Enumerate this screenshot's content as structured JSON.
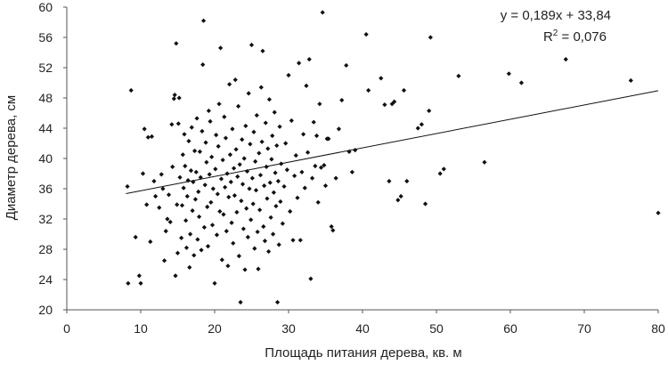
{
  "chart_data": {
    "type": "scatter",
    "xlabel": "Площадь питания дерева,  кв. м",
    "ylabel": "Диаметр дерева,  см",
    "xlim": [
      0,
      80
    ],
    "ylim": [
      20,
      60
    ],
    "xticks": [
      0,
      10,
      20,
      30,
      40,
      50,
      60,
      70,
      80
    ],
    "yticks": [
      20,
      24,
      28,
      32,
      36,
      40,
      44,
      48,
      52,
      56,
      60
    ],
    "grid": false,
    "marker_color": "#111111",
    "trendline": {
      "slope": 0.189,
      "intercept": 33.84,
      "x_range": [
        8,
        80
      ],
      "equation": "y = 0,189x + 33,84",
      "r2_prefix": "R",
      "r2_sup": "2",
      "r2_value": " = 0,076"
    },
    "points": [
      [
        8.2,
        36.3
      ],
      [
        8.3,
        23.5
      ],
      [
        8.7,
        49.0
      ],
      [
        9.3,
        29.6
      ],
      [
        9.8,
        24.5
      ],
      [
        10.0,
        23.5
      ],
      [
        10.3,
        38.0
      ],
      [
        10.5,
        43.9
      ],
      [
        10.8,
        33.9
      ],
      [
        11.0,
        42.8
      ],
      [
        11.3,
        29.0
      ],
      [
        11.5,
        42.9
      ],
      [
        11.8,
        37.0
      ],
      [
        12.0,
        35.0
      ],
      [
        12.5,
        33.5
      ],
      [
        12.8,
        37.9
      ],
      [
        13.0,
        36.0
      ],
      [
        13.2,
        26.5
      ],
      [
        13.4,
        30.4
      ],
      [
        13.6,
        32.0
      ],
      [
        13.8,
        35.2
      ],
      [
        14.0,
        31.6
      ],
      [
        14.2,
        44.5
      ],
      [
        14.3,
        38.9
      ],
      [
        14.5,
        47.9
      ],
      [
        14.6,
        48.4
      ],
      [
        14.7,
        24.5
      ],
      [
        14.8,
        55.2
      ],
      [
        14.9,
        33.9
      ],
      [
        15.0,
        27.5
      ],
      [
        15.1,
        44.6
      ],
      [
        15.2,
        48.0
      ],
      [
        15.3,
        37.5
      ],
      [
        15.5,
        29.5
      ],
      [
        15.6,
        33.8
      ],
      [
        15.7,
        40.5
      ],
      [
        15.8,
        36.1
      ],
      [
        15.9,
        43.2
      ],
      [
        16.0,
        39.0
      ],
      [
        16.1,
        31.8
      ],
      [
        16.2,
        28.2
      ],
      [
        16.3,
        35.0
      ],
      [
        16.4,
        37.1
      ],
      [
        16.5,
        42.3
      ],
      [
        16.6,
        25.6
      ],
      [
        16.7,
        30.0
      ],
      [
        16.8,
        38.4
      ],
      [
        16.9,
        44.1
      ],
      [
        17.0,
        33.1
      ],
      [
        17.1,
        36.9
      ],
      [
        17.2,
        27.2
      ],
      [
        17.3,
        41.0
      ],
      [
        17.4,
        34.6
      ],
      [
        17.5,
        38.2
      ],
      [
        17.6,
        45.3
      ],
      [
        17.7,
        29.3
      ],
      [
        17.8,
        35.6
      ],
      [
        17.9,
        32.3
      ],
      [
        18.0,
        40.9
      ],
      [
        18.1,
        37.5
      ],
      [
        18.2,
        27.9
      ],
      [
        18.3,
        43.6
      ],
      [
        18.4,
        52.4
      ],
      [
        18.5,
        58.2
      ],
      [
        18.6,
        30.9
      ],
      [
        18.7,
        36.5
      ],
      [
        18.8,
        42.1
      ],
      [
        18.9,
        39.5
      ],
      [
        19.0,
        33.6
      ],
      [
        19.1,
        28.4
      ],
      [
        19.2,
        46.3
      ],
      [
        19.3,
        37.9
      ],
      [
        19.4,
        44.9
      ],
      [
        19.5,
        34.2
      ],
      [
        19.6,
        40.2
      ],
      [
        19.7,
        31.2
      ],
      [
        19.8,
        36.0
      ],
      [
        20.0,
        23.5
      ],
      [
        20.1,
        38.6
      ],
      [
        20.2,
        43.1
      ],
      [
        20.3,
        29.9
      ],
      [
        20.4,
        35.3
      ],
      [
        20.5,
        41.6
      ],
      [
        20.6,
        47.2
      ],
      [
        20.7,
        33.0
      ],
      [
        20.8,
        54.6
      ],
      [
        20.9,
        37.3
      ],
      [
        21.0,
        26.6
      ],
      [
        21.1,
        39.8
      ],
      [
        21.2,
        32.6
      ],
      [
        21.3,
        45.5
      ],
      [
        21.4,
        36.2
      ],
      [
        21.5,
        42.7
      ],
      [
        21.6,
        30.4
      ],
      [
        21.7,
        38.0
      ],
      [
        21.8,
        25.8
      ],
      [
        21.9,
        34.9
      ],
      [
        22.0,
        49.8
      ],
      [
        22.1,
        40.5
      ],
      [
        22.2,
        36.9
      ],
      [
        22.3,
        31.5
      ],
      [
        22.4,
        43.9
      ],
      [
        22.5,
        28.8
      ],
      [
        22.6,
        38.7
      ],
      [
        22.7,
        35.1
      ],
      [
        22.8,
        50.4
      ],
      [
        22.9,
        41.2
      ],
      [
        23.0,
        32.9
      ],
      [
        23.1,
        37.6
      ],
      [
        23.2,
        46.9
      ],
      [
        23.3,
        27.1
      ],
      [
        23.4,
        39.2
      ],
      [
        23.5,
        21.0
      ],
      [
        23.6,
        34.4
      ],
      [
        23.7,
        42.5
      ],
      [
        23.8,
        36.6
      ],
      [
        23.9,
        30.7
      ],
      [
        24.0,
        40.0
      ],
      [
        24.1,
        25.3
      ],
      [
        24.2,
        44.3
      ],
      [
        24.3,
        33.4
      ],
      [
        24.4,
        38.3
      ],
      [
        24.5,
        29.6
      ],
      [
        24.6,
        48.6
      ],
      [
        24.7,
        36.0
      ],
      [
        24.8,
        41.9
      ],
      [
        24.9,
        31.9
      ],
      [
        25.0,
        55.0
      ],
      [
        25.1,
        37.4
      ],
      [
        25.2,
        34.0
      ],
      [
        25.3,
        43.5
      ],
      [
        25.4,
        28.1
      ],
      [
        25.5,
        39.6
      ],
      [
        25.6,
        35.8
      ],
      [
        25.7,
        45.7
      ],
      [
        25.8,
        30.3
      ],
      [
        25.9,
        25.4
      ],
      [
        26.0,
        40.7
      ],
      [
        26.1,
        33.2
      ],
      [
        26.2,
        37.8
      ],
      [
        26.3,
        49.4
      ],
      [
        26.4,
        42.2
      ],
      [
        26.5,
        54.2
      ],
      [
        26.6,
        31.0
      ],
      [
        26.7,
        36.4
      ],
      [
        26.8,
        29.1
      ],
      [
        26.9,
        44.7
      ],
      [
        27.0,
        38.9
      ],
      [
        27.1,
        34.7
      ],
      [
        27.2,
        41.3
      ],
      [
        27.3,
        27.7
      ],
      [
        27.4,
        47.8
      ],
      [
        27.5,
        36.8
      ],
      [
        27.6,
        32.2
      ],
      [
        27.7,
        39.9
      ],
      [
        27.8,
        43.0
      ],
      [
        27.9,
        30.0
      ],
      [
        28.0,
        35.5
      ],
      [
        28.1,
        46.1
      ],
      [
        28.2,
        38.1
      ],
      [
        28.3,
        33.7
      ],
      [
        28.4,
        41.7
      ],
      [
        28.5,
        21.0
      ],
      [
        28.6,
        37.0
      ],
      [
        28.7,
        28.6
      ],
      [
        28.8,
        44.2
      ],
      [
        28.9,
        34.3
      ],
      [
        29.0,
        39.3
      ],
      [
        29.2,
        31.4
      ],
      [
        29.4,
        36.3
      ],
      [
        29.6,
        42.0
      ],
      [
        29.8,
        38.5
      ],
      [
        30.0,
        51.0
      ],
      [
        30.2,
        33.0
      ],
      [
        30.4,
        45.0
      ],
      [
        30.6,
        29.2
      ],
      [
        30.8,
        37.7
      ],
      [
        31.0,
        40.4
      ],
      [
        31.2,
        34.8
      ],
      [
        31.4,
        52.6
      ],
      [
        31.6,
        29.2
      ],
      [
        31.8,
        38.2
      ],
      [
        32.0,
        43.2
      ],
      [
        32.2,
        36.1
      ],
      [
        32.4,
        49.6
      ],
      [
        32.6,
        40.8
      ],
      [
        32.8,
        53.1
      ],
      [
        33.0,
        24.1
      ],
      [
        33.2,
        37.4
      ],
      [
        33.4,
        44.8
      ],
      [
        33.6,
        39.0
      ],
      [
        33.8,
        43.0
      ],
      [
        34.0,
        34.2
      ],
      [
        34.2,
        47.2
      ],
      [
        34.4,
        38.8
      ],
      [
        34.6,
        59.3
      ],
      [
        34.8,
        39.1
      ],
      [
        35.0,
        36.4
      ],
      [
        35.2,
        42.6
      ],
      [
        35.4,
        42.6
      ],
      [
        35.8,
        31.0
      ],
      [
        36.0,
        30.5
      ],
      [
        36.4,
        37.4
      ],
      [
        36.8,
        43.9
      ],
      [
        37.2,
        47.7
      ],
      [
        37.8,
        52.3
      ],
      [
        38.2,
        40.9
      ],
      [
        38.6,
        38.2
      ],
      [
        39.0,
        41.1
      ],
      [
        40.5,
        56.4
      ],
      [
        40.8,
        49.0
      ],
      [
        42.5,
        50.6
      ],
      [
        43.0,
        47.1
      ],
      [
        43.6,
        37.0
      ],
      [
        44.0,
        47.2
      ],
      [
        44.3,
        47.5
      ],
      [
        44.8,
        34.5
      ],
      [
        45.2,
        35.0
      ],
      [
        45.6,
        49.0
      ],
      [
        46.0,
        37.0
      ],
      [
        47.5,
        44.0
      ],
      [
        48.0,
        44.5
      ],
      [
        48.5,
        34.0
      ],
      [
        49.0,
        46.3
      ],
      [
        49.2,
        56.0
      ],
      [
        50.5,
        38.0
      ],
      [
        51.0,
        38.6
      ],
      [
        53.0,
        50.9
      ],
      [
        56.5,
        39.5
      ],
      [
        59.8,
        51.2
      ],
      [
        61.5,
        50.0
      ],
      [
        67.5,
        53.1
      ],
      [
        76.3,
        50.3
      ],
      [
        80.0,
        32.8
      ]
    ]
  }
}
